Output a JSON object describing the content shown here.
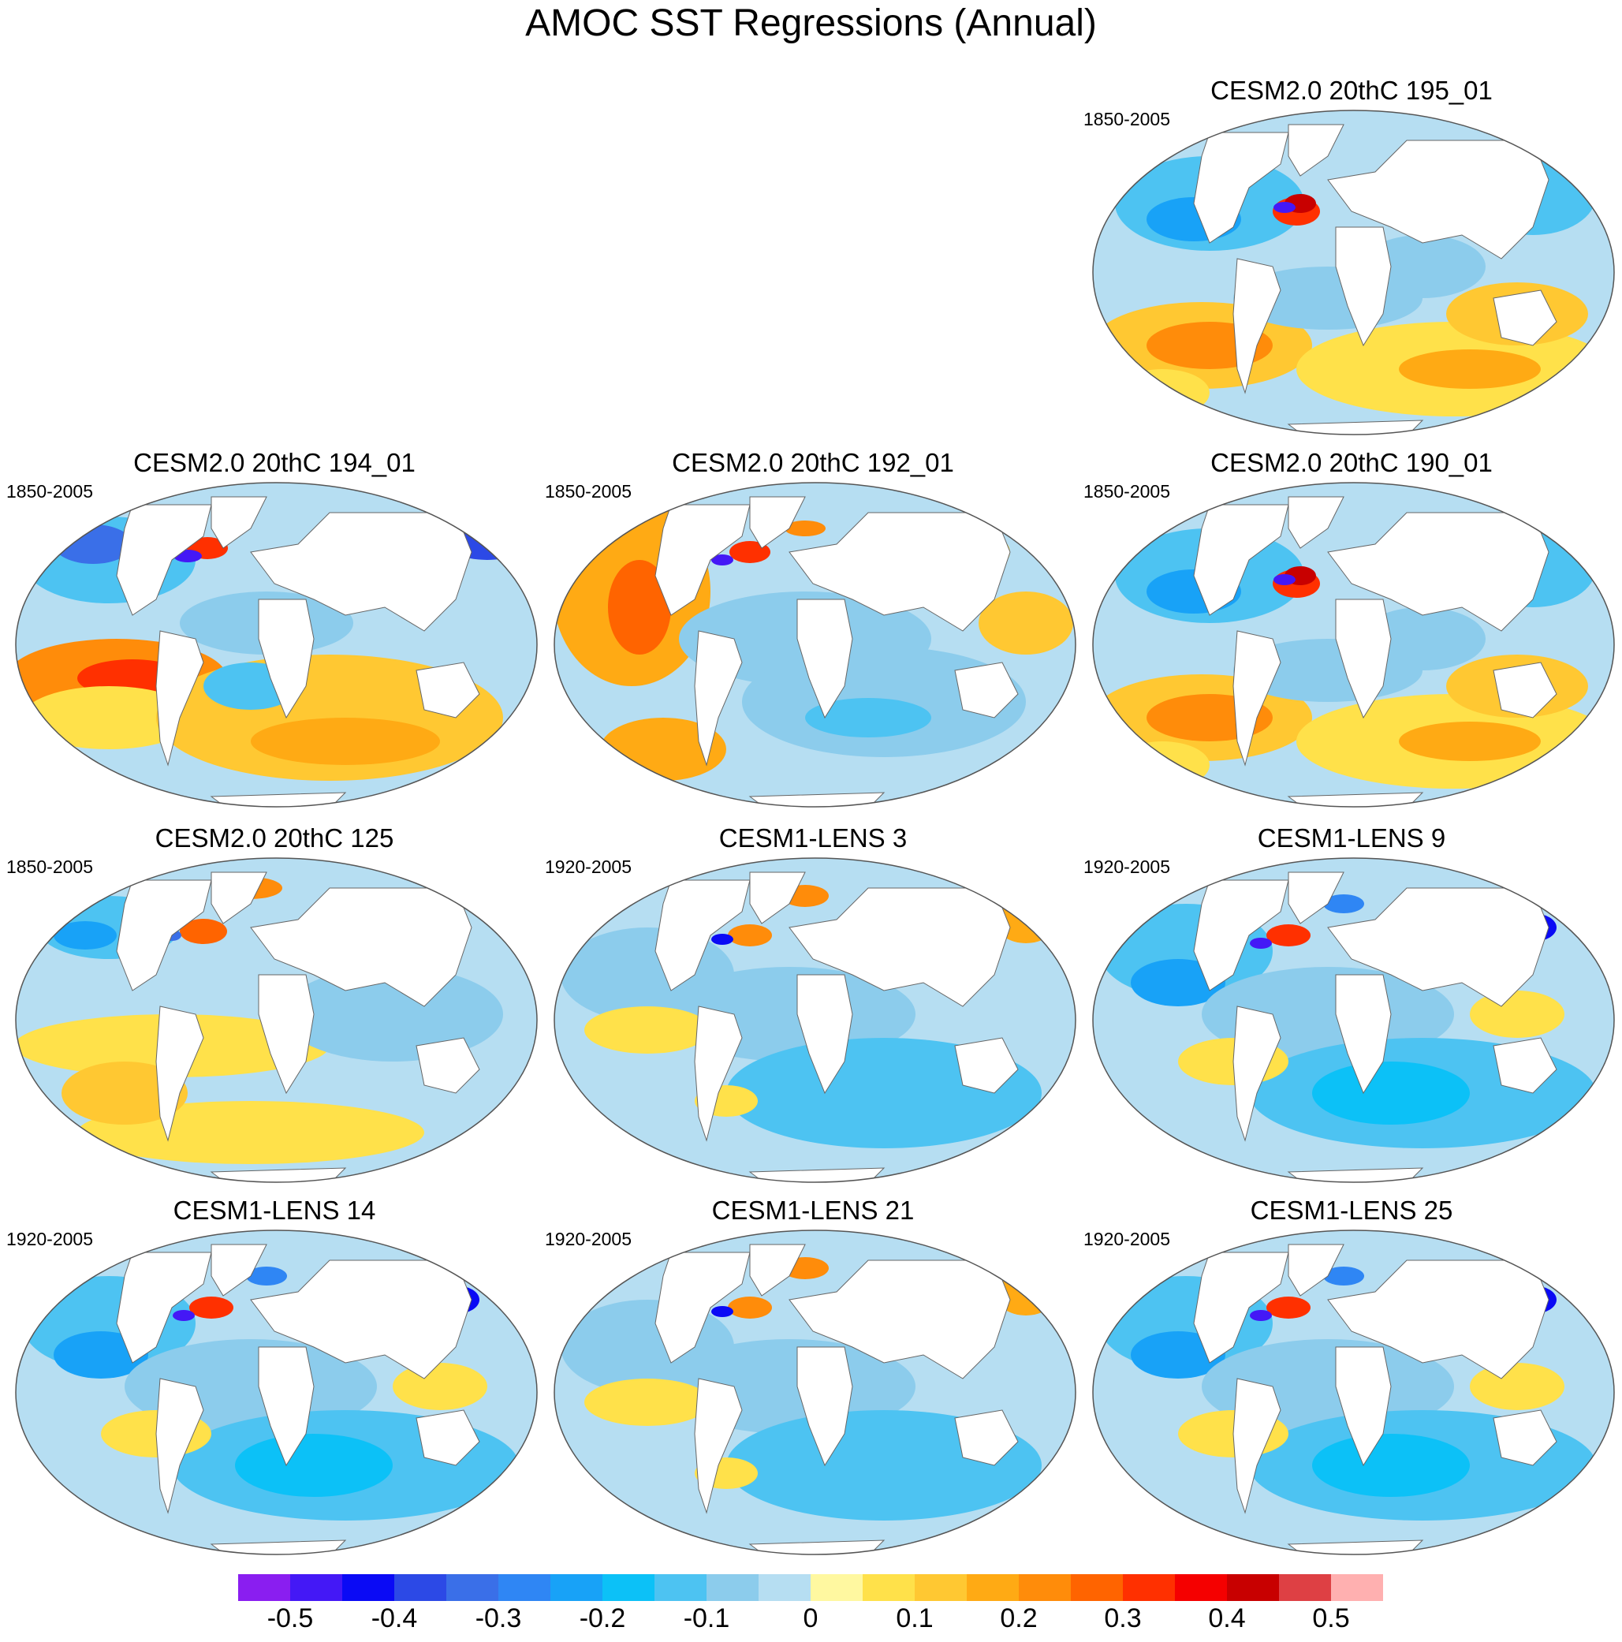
{
  "figure": {
    "title": "AMOC SST Regressions (Annual)"
  },
  "panels": [
    {
      "title": "CESM2.0 20thC 195_01",
      "period": "1850-2005",
      "pattern": "a"
    },
    {
      "title": "CESM2.0 20thC 194_01",
      "period": "1850-2005",
      "pattern": "b"
    },
    {
      "title": "CESM2.0 20thC 192_01",
      "period": "1850-2005",
      "pattern": "c"
    },
    {
      "title": "CESM2.0 20thC 190_01",
      "period": "1850-2005",
      "pattern": "a"
    },
    {
      "title": "CESM2.0 20thC 125",
      "period": "1850-2005",
      "pattern": "d"
    },
    {
      "title": "CESM1-LENS 3",
      "period": "1920-2005",
      "pattern": "e"
    },
    {
      "title": "CESM1-LENS 9",
      "period": "1920-2005",
      "pattern": "f"
    },
    {
      "title": "CESM1-LENS 14",
      "period": "1920-2005",
      "pattern": "f"
    },
    {
      "title": "CESM1-LENS 21",
      "period": "1920-2005",
      "pattern": "e"
    },
    {
      "title": "CESM1-LENS 25",
      "period": "1920-2005",
      "pattern": "f"
    }
  ],
  "colorbar": {
    "colors": [
      "#8a1ef0",
      "#4418f6",
      "#0a0af5",
      "#2c49e6",
      "#3a6fe8",
      "#2f86f4",
      "#18a2f7",
      "#0cc1f7",
      "#4dc3f2",
      "#8cccec",
      "#b6def2",
      "#fff8a0",
      "#ffe14a",
      "#ffc832",
      "#ffaa14",
      "#ff8c0a",
      "#ff6400",
      "#ff3000",
      "#f50000",
      "#c80000",
      "#de4044",
      "#ffb0b0"
    ],
    "tick_labels": [
      "-0.5",
      "-0.4",
      "-0.3",
      "-0.2",
      "-0.1",
      "0",
      "0.1",
      "0.2",
      "0.3",
      "0.4",
      "0.5"
    ]
  }
}
